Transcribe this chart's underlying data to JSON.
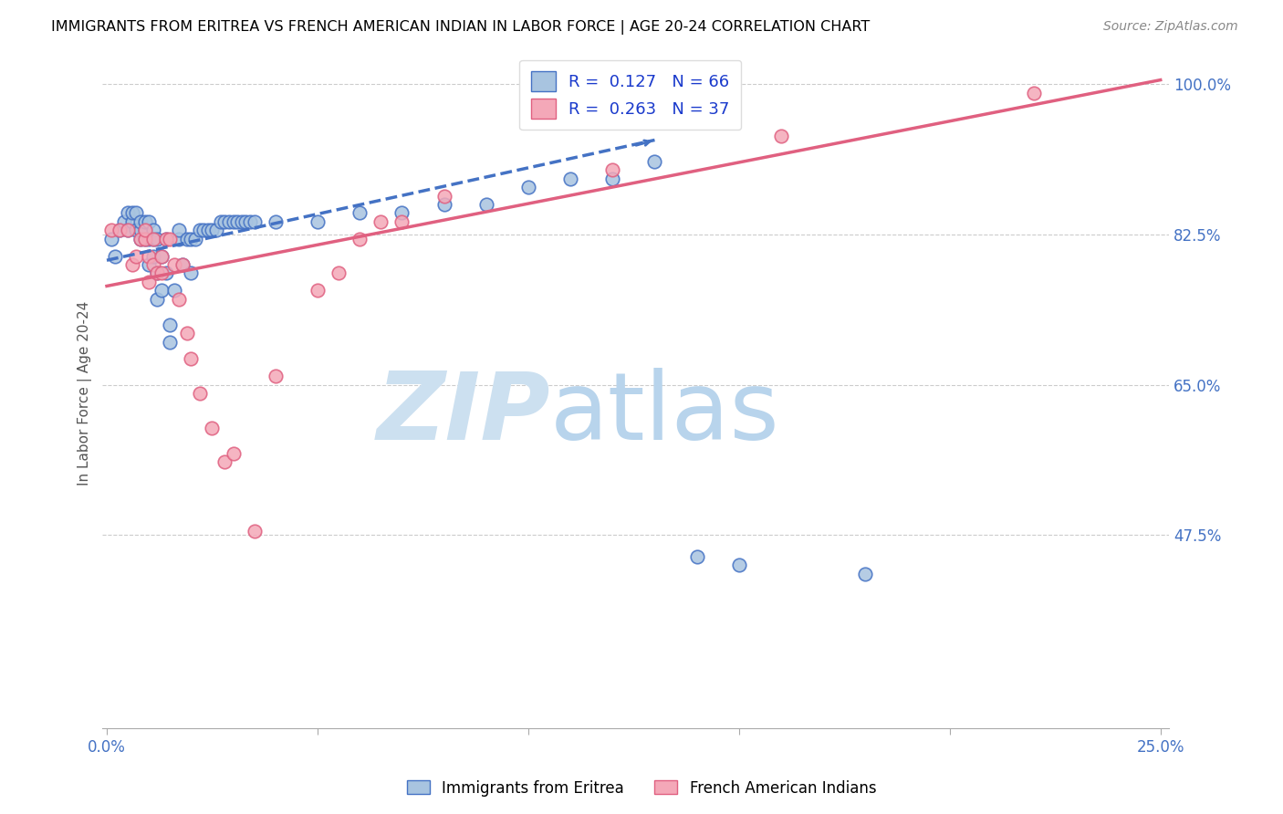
{
  "title": "IMMIGRANTS FROM ERITREA VS FRENCH AMERICAN INDIAN IN LABOR FORCE | AGE 20-24 CORRELATION CHART",
  "source": "Source: ZipAtlas.com",
  "ylabel": "In Labor Force | Age 20-24",
  "color_blue": "#a8c4e0",
  "color_pink": "#f4a8b8",
  "line_blue": "#4472c4",
  "line_pink": "#e06080",
  "R_blue": 0.127,
  "N_blue": 66,
  "R_pink": 0.263,
  "N_pink": 37,
  "xmin": 0.0,
  "xmax": 0.25,
  "ymin": 0.25,
  "ymax": 1.03,
  "ytick_vals": [
    0.475,
    0.65,
    0.825,
    1.0
  ],
  "ytick_labels": [
    "47.5%",
    "65.0%",
    "82.5%",
    "100.0%"
  ],
  "xtick_positions": [
    0.0,
    0.05,
    0.1,
    0.15,
    0.2,
    0.25
  ],
  "xtick_labels": [
    "0.0%",
    "",
    "",
    "",
    "",
    "25.0%"
  ],
  "blue_trend_x0": 0.0,
  "blue_trend_y0": 0.795,
  "blue_trend_x1": 0.13,
  "blue_trend_y1": 0.935,
  "pink_trend_x0": 0.0,
  "pink_trend_y0": 0.765,
  "pink_trend_x1": 0.25,
  "pink_trend_y1": 1.005,
  "watermark_zip": "ZIP",
  "watermark_atlas": "atlas",
  "watermark_color_zip": "#c8dff0",
  "watermark_color_atlas": "#b0cce8",
  "blue_x": [
    0.001,
    0.002,
    0.003,
    0.004,
    0.005,
    0.005,
    0.006,
    0.006,
    0.007,
    0.007,
    0.008,
    0.008,
    0.008,
    0.009,
    0.009,
    0.009,
    0.01,
    0.01,
    0.01,
    0.011,
    0.011,
    0.011,
    0.012,
    0.012,
    0.012,
    0.013,
    0.013,
    0.014,
    0.014,
    0.015,
    0.015,
    0.016,
    0.017,
    0.017,
    0.018,
    0.019,
    0.02,
    0.02,
    0.021,
    0.022,
    0.023,
    0.024,
    0.025,
    0.026,
    0.027,
    0.028,
    0.029,
    0.03,
    0.031,
    0.032,
    0.033,
    0.034,
    0.035,
    0.04,
    0.05,
    0.06,
    0.07,
    0.08,
    0.09,
    0.1,
    0.11,
    0.12,
    0.13,
    0.14,
    0.15,
    0.18
  ],
  "blue_y": [
    0.82,
    0.8,
    0.83,
    0.84,
    0.83,
    0.85,
    0.84,
    0.85,
    0.83,
    0.85,
    0.82,
    0.83,
    0.84,
    0.82,
    0.83,
    0.84,
    0.79,
    0.82,
    0.84,
    0.8,
    0.82,
    0.83,
    0.75,
    0.78,
    0.82,
    0.76,
    0.8,
    0.78,
    0.82,
    0.7,
    0.72,
    0.76,
    0.82,
    0.83,
    0.79,
    0.82,
    0.78,
    0.82,
    0.82,
    0.83,
    0.83,
    0.83,
    0.83,
    0.83,
    0.84,
    0.84,
    0.84,
    0.84,
    0.84,
    0.84,
    0.84,
    0.84,
    0.84,
    0.84,
    0.84,
    0.85,
    0.85,
    0.86,
    0.86,
    0.88,
    0.89,
    0.89,
    0.91,
    0.45,
    0.44,
    0.43
  ],
  "pink_x": [
    0.001,
    0.003,
    0.005,
    0.006,
    0.007,
    0.008,
    0.009,
    0.009,
    0.01,
    0.01,
    0.011,
    0.011,
    0.012,
    0.013,
    0.013,
    0.014,
    0.015,
    0.016,
    0.017,
    0.018,
    0.019,
    0.02,
    0.022,
    0.025,
    0.028,
    0.03,
    0.035,
    0.04,
    0.05,
    0.055,
    0.06,
    0.065,
    0.07,
    0.08,
    0.12,
    0.16,
    0.22
  ],
  "pink_y": [
    0.83,
    0.83,
    0.83,
    0.79,
    0.8,
    0.82,
    0.82,
    0.83,
    0.77,
    0.8,
    0.79,
    0.82,
    0.78,
    0.78,
    0.8,
    0.82,
    0.82,
    0.79,
    0.75,
    0.79,
    0.71,
    0.68,
    0.64,
    0.6,
    0.56,
    0.57,
    0.48,
    0.66,
    0.76,
    0.78,
    0.82,
    0.84,
    0.84,
    0.87,
    0.9,
    0.94,
    0.99
  ]
}
